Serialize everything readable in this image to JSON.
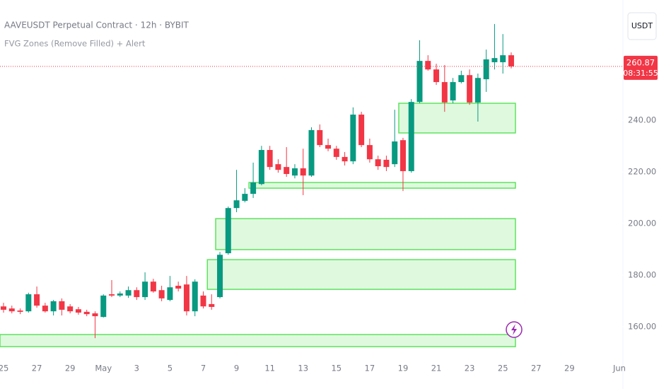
{
  "chart_data": {
    "type": "candlestick",
    "title": "AAVEUSDT Perpetual Contract · 12h · BYBIT",
    "indicator": "FVG Zones (Remove Filled) + Alert",
    "currency": "USDT",
    "countdown": "08:31:55",
    "categories": [
      "25",
      null,
      null,
      null,
      "27",
      null,
      null,
      null,
      "29",
      null,
      null,
      null,
      "May",
      null,
      null,
      null,
      "3",
      null,
      null,
      null,
      "5",
      null,
      null,
      null,
      "7",
      null,
      null,
      null,
      "9",
      null,
      null,
      null,
      "11",
      null,
      null,
      null,
      "13",
      null,
      null,
      null,
      "15",
      null,
      null,
      null,
      "17",
      null,
      null,
      null,
      "19",
      null,
      null,
      null,
      "21",
      null,
      null,
      null,
      "23",
      null,
      null,
      null,
      "25",
      null,
      null,
      null,
      "27",
      null,
      null,
      null,
      "29",
      null,
      null,
      null,
      null,
      null,
      "Jun"
    ],
    "open": [
      167.9,
      167.1,
      166.3,
      166.0,
      172.6,
      168.2,
      166.0,
      169.9,
      167.9,
      166.8,
      165.8,
      165.2,
      163.8,
      172.6,
      172.1,
      172.1,
      174.2,
      171.5,
      177.5,
      174.2,
      170.4,
      175.9,
      176.4,
      166.0,
      172.1,
      168.8,
      171.5,
      188.5,
      206.0,
      208.8,
      211.5,
      215.3,
      228.5,
      223.0,
      221.9,
      218.6,
      221.4,
      218.6,
      236.2,
      230.4,
      229.0,
      225.8,
      224.1,
      242.2,
      230.4,
      224.9,
      224.7,
      223.0,
      232.3,
      220.3,
      247.1,
      263.0,
      259.7,
      254.8,
      247.7,
      254.8,
      257.5,
      246.9,
      255.9,
      262.5,
      262.5,
      265.2,
      null,
      null,
      null,
      null,
      null,
      null,
      null,
      null,
      null,
      null,
      null,
      null,
      null
    ],
    "high": [
      169.3,
      168.2,
      167.1,
      173.2,
      175.6,
      169.3,
      170.4,
      171.0,
      168.8,
      167.7,
      166.6,
      166.0,
      172.6,
      178.1,
      173.7,
      175.6,
      175.3,
      181.1,
      178.6,
      175.9,
      179.7,
      177.5,
      179.7,
      178.4,
      173.7,
      172.6,
      189.0,
      206.6,
      220.8,
      213.7,
      223.6,
      230.1,
      230.1,
      224.9,
      229.6,
      223.0,
      229.0,
      237.3,
      238.4,
      232.9,
      230.1,
      227.7,
      245.0,
      243.3,
      232.9,
      226.3,
      226.3,
      244.1,
      233.2,
      248.2,
      271.0,
      265.2,
      261.9,
      261.4,
      256.4,
      259.2,
      259.7,
      258.1,
      267.4,
      277.3,
      273.4,
      266.3,
      null,
      null,
      null,
      null,
      null,
      null,
      null,
      null,
      null,
      null,
      null,
      null,
      null
    ],
    "low": [
      165.5,
      165.2,
      164.9,
      165.5,
      167.4,
      165.5,
      164.4,
      164.4,
      165.2,
      164.7,
      164.1,
      155.6,
      163.6,
      171.5,
      171.5,
      171.2,
      170.4,
      170.4,
      173.2,
      169.9,
      169.9,
      173.7,
      164.4,
      164.1,
      167.1,
      166.6,
      171.0,
      187.9,
      204.4,
      208.2,
      209.9,
      214.8,
      220.8,
      219.7,
      218.1,
      217.5,
      211.0,
      218.1,
      229.6,
      228.0,
      224.7,
      222.5,
      223.0,
      229.6,
      223.6,
      220.8,
      220.3,
      221.9,
      212.6,
      219.7,
      246.6,
      259.2,
      253.7,
      243.3,
      246.6,
      254.3,
      246.0,
      239.5,
      251.0,
      259.7,
      258.1,
      260.1,
      null,
      null,
      null,
      null,
      null,
      null,
      null,
      null,
      null,
      null,
      null,
      null,
      null
    ],
    "close": [
      166.6,
      166.0,
      165.8,
      172.6,
      168.2,
      166.0,
      169.9,
      166.6,
      166.0,
      165.5,
      164.9,
      164.1,
      172.1,
      172.1,
      172.9,
      174.2,
      171.5,
      177.5,
      173.7,
      171.0,
      175.3,
      174.8,
      166.0,
      177.5,
      167.9,
      167.7,
      187.9,
      206.0,
      209.0,
      211.5,
      215.9,
      228.5,
      221.9,
      220.8,
      219.2,
      221.4,
      218.6,
      236.2,
      230.4,
      229.0,
      225.8,
      224.1,
      242.2,
      230.4,
      224.9,
      222.2,
      221.9,
      231.8,
      220.3,
      247.1,
      263.0,
      259.7,
      254.8,
      246.9,
      254.8,
      257.5,
      246.9,
      256.4,
      263.6,
      264.1,
      265.2,
      260.87,
      null,
      null,
      null,
      null,
      null,
      null,
      null,
      null,
      null,
      null,
      null,
      null,
      null
    ],
    "up_color": "#089981",
    "down_color": "#f23645",
    "zones": [
      {
        "start": 48,
        "top": 246.6,
        "bottom": 235.1
      },
      {
        "start": 30,
        "top": 215.9,
        "bottom": 213.7
      },
      {
        "start": 26,
        "top": 201.9,
        "bottom": 189.9
      },
      {
        "start": 25,
        "top": 186.0,
        "bottom": 174.5
      },
      {
        "start": 0,
        "top": 157.0,
        "bottom": 152.3
      }
    ],
    "zone_color": "#5ee35e",
    "ylim": [
      149.6,
      286.6
    ],
    "yticks": [
      {
        "value": 160,
        "label": "160.00"
      },
      {
        "value": 180,
        "label": "180.00"
      },
      {
        "value": 200,
        "label": "200.00"
      },
      {
        "value": 220,
        "label": "220.00"
      },
      {
        "value": 240,
        "label": "240.00"
      }
    ]
  }
}
